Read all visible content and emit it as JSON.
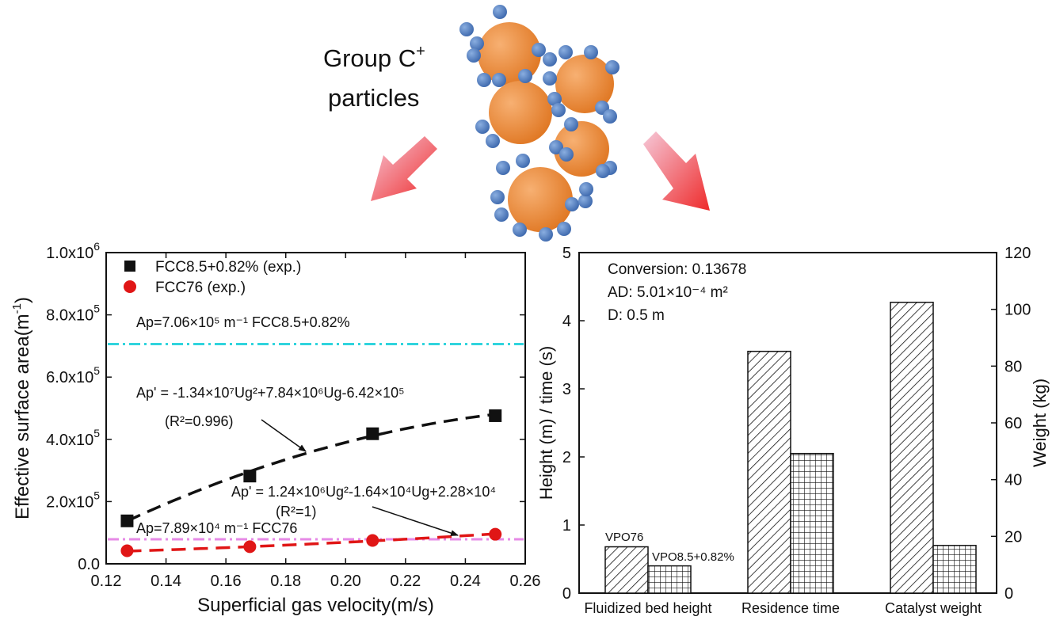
{
  "header": {
    "title_line1": "Group C",
    "title_sup": "+",
    "title_line2": "particles"
  },
  "colors": {
    "host_particle": "#ef8b3a",
    "guest_particle": "#4d7cc0",
    "arrow": "#ee2a2a",
    "series_fcc85": "#111111",
    "series_fcc76": "#e01616",
    "line_fcc85": "#30d4dd",
    "line_fcc76": "#e68ae6"
  },
  "chart_data": [
    {
      "type": "scatter",
      "xlabel": "Superficial gas velocity(m/s)",
      "ylabel": "Effective surface area(m",
      "ylabel_sup": "-1",
      "ylabel_end": ")",
      "xlim": [
        0.12,
        0.26
      ],
      "ylim": [
        0,
        1000000
      ],
      "x_ticks": [
        "0.12",
        "0.14",
        "0.16",
        "0.18",
        "0.20",
        "0.22",
        "0.24",
        "0.26"
      ],
      "y_ticks": [
        {
          "value": 0,
          "mant": "0.0",
          "exp": ""
        },
        {
          "value": 200000,
          "mant": "2.0x10",
          "exp": "5"
        },
        {
          "value": 400000,
          "mant": "4.0x10",
          "exp": "5"
        },
        {
          "value": 600000,
          "mant": "6.0x10",
          "exp": "5"
        },
        {
          "value": 800000,
          "mant": "8.0x10",
          "exp": "5"
        },
        {
          "value": 1000000,
          "mant": "1.0x10",
          "exp": "6"
        }
      ],
      "legend": [
        "FCC8.5+0.82% (exp.)",
        "FCC76 (exp.)"
      ],
      "series": [
        {
          "name": "FCC8.5+0.82% (exp.)",
          "marker": "square",
          "x": [
            0.127,
            0.168,
            0.209,
            0.25
          ],
          "y": [
            138000,
            282000,
            418000,
            476000
          ],
          "fit": {
            "a": -13400000,
            "b": 7840000,
            "c": -642000
          }
        },
        {
          "name": "FCC76 (exp.)",
          "marker": "circle",
          "x": [
            0.127,
            0.168,
            0.209,
            0.25
          ],
          "y": [
            42000,
            55000,
            75000,
            95000
          ],
          "fit": {
            "a": 1240000,
            "b": -16400,
            "c": 22800
          }
        }
      ],
      "hlines": [
        {
          "y": 706000,
          "label": "Ap=7.06×10⁵ m⁻¹  FCC8.5+0.82%"
        },
        {
          "y": 78900,
          "label": "Ap=7.89×10⁴ m⁻¹  FCC76"
        }
      ],
      "annotations": {
        "eq1": "Ap' = -1.34×10⁷Ug²+7.84×10⁶Ug-6.42×10⁵",
        "r1": "(R²=0.996)",
        "eq2": "Ap' = 1.24×10⁶Ug²-1.64×10⁴Ug+2.28×10⁴",
        "r2": "(R²=1)"
      }
    },
    {
      "type": "bar",
      "ylabel_left": "Height (m) / time (s)",
      "ylabel_right": "Weight (kg)",
      "ylim_left": [
        0,
        5
      ],
      "ylim_right": [
        0,
        120
      ],
      "y_ticks_left": [
        "0",
        "1",
        "2",
        "3",
        "4",
        "5"
      ],
      "y_ticks_right": [
        "0",
        "20",
        "40",
        "60",
        "80",
        "100",
        "120"
      ],
      "categories": [
        "Fluidized bed height",
        "Residence time",
        "Catalyst weight"
      ],
      "series": [
        {
          "name": "VPO76",
          "pattern": "diagonal",
          "values_left": [
            0.68,
            3.55,
            4.27
          ]
        },
        {
          "name": "VPO8.5+0.82%",
          "pattern": "grid",
          "values_left": [
            0.4,
            2.05,
            0.7
          ]
        }
      ],
      "bar_labels": [
        "VPO76",
        "VPO8.5+0.82%"
      ],
      "info": {
        "conversion": "Conversion: 0.13678",
        "area": "AD: 5.01×10⁻⁴  m²",
        "diameter": "D: 0.5 m"
      }
    }
  ]
}
